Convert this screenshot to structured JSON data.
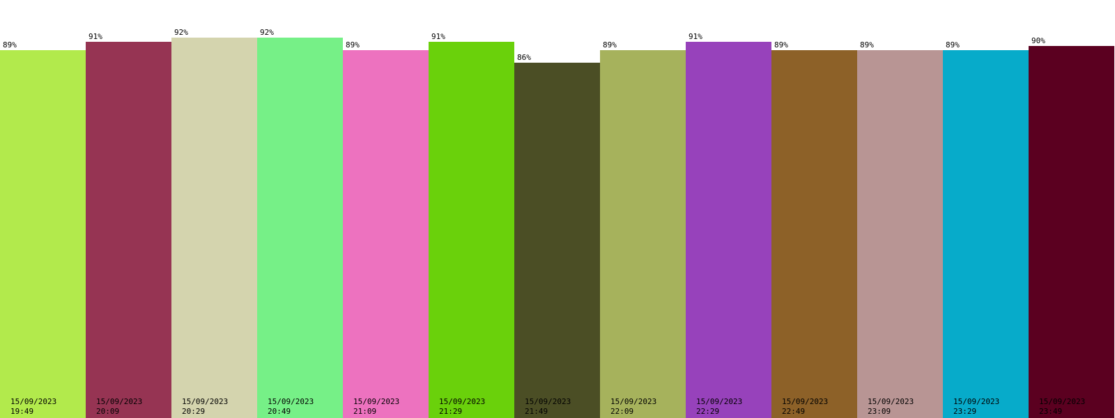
{
  "chart_data": {
    "type": "bar",
    "categories": [
      "15/09/2023\n19:49",
      "15/09/2023\n20:09",
      "15/09/2023\n20:29",
      "15/09/2023\n20:49",
      "15/09/2023\n21:09",
      "15/09/2023\n21:29",
      "15/09/2023\n21:49",
      "15/09/2023\n22:09",
      "15/09/2023\n22:29",
      "15/09/2023\n22:49",
      "15/09/2023\n23:09",
      "15/09/2023\n23:29",
      "15/09/2023\n23:49"
    ],
    "values": [
      89,
      91,
      92,
      92,
      89,
      91,
      86,
      89,
      91,
      89,
      89,
      89,
      90
    ],
    "value_labels": [
      "89%",
      "91%",
      "92%",
      "92%",
      "89%",
      "91%",
      "86%",
      "89%",
      "91%",
      "89%",
      "89%",
      "89%",
      "90%"
    ],
    "colors": [
      "#b2ea4c",
      "#963453",
      "#d4d4ae",
      "#76f087",
      "#ed72bf",
      "#6ad10b",
      "#4b4e25",
      "#a6b25c",
      "#9742bb",
      "#8d6128",
      "#b89594",
      "#07abca",
      "#5b0020"
    ],
    "unit": "%",
    "ylim": [
      0,
      100
    ],
    "grid": false,
    "legend": "none"
  }
}
